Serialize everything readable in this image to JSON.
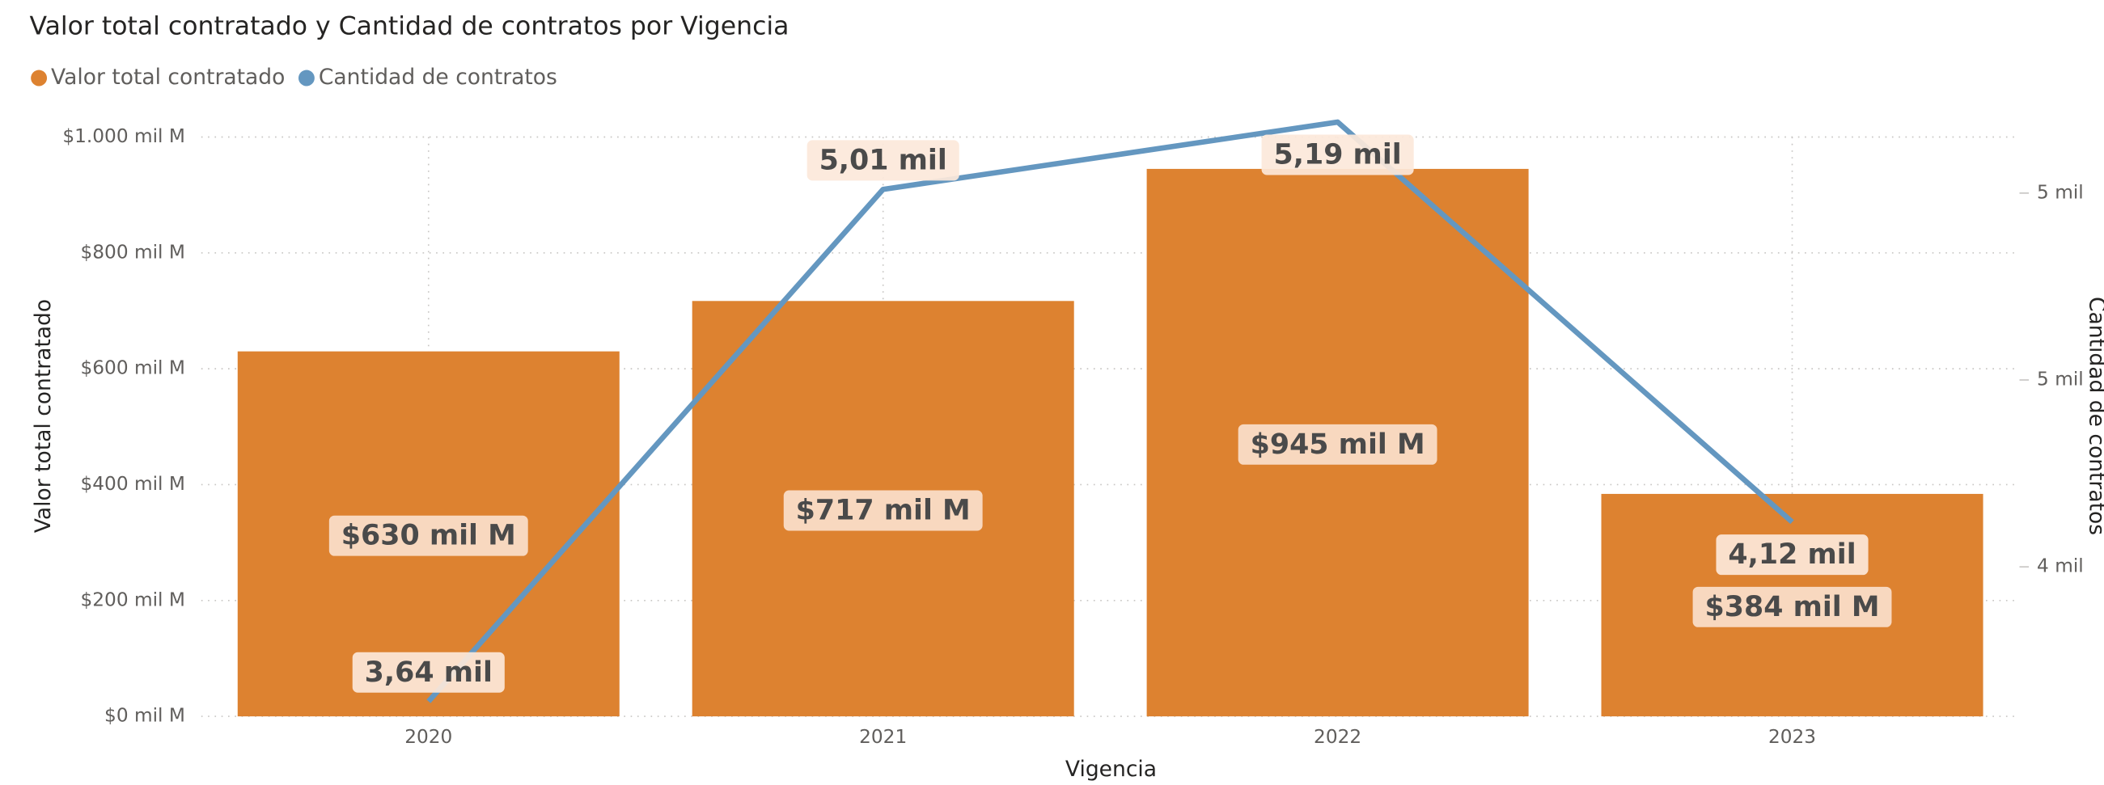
{
  "chart_data": {
    "type": "bar_line",
    "title": "Valor total contratado y Cantidad de contratos por Vigencia",
    "x_label": "Vigencia",
    "y_label": "Valor total contratado",
    "y2_label": "Cantidad de contratos",
    "categories": [
      "2020",
      "2021",
      "2022",
      "2023"
    ],
    "series": [
      {
        "name": "Valor total contratado",
        "type": "bar",
        "color": "#dd8230",
        "values": [
          630,
          717,
          945,
          384
        ],
        "value_labels": [
          "$630 mil M",
          "$717 mil M",
          "$945 mil M",
          "$384 mil M"
        ]
      },
      {
        "name": "Cantidad de contratos",
        "type": "line",
        "axis": "y2",
        "color": "#6497c0",
        "values": [
          3640,
          5010,
          5190,
          4120
        ],
        "value_labels": [
          "3,64 mil",
          "5,01 mil",
          "5,19 mil",
          "4,12 mil"
        ]
      }
    ],
    "ylim": [
      0,
      1000
    ],
    "yticks": [
      {
        "value": 0,
        "label": "$0 mil M"
      },
      {
        "value": 200,
        "label": "$200 mil M"
      },
      {
        "value": 400,
        "label": "$400 mil M"
      },
      {
        "value": 600,
        "label": "$600 mil M"
      },
      {
        "value": 800,
        "label": "$800 mil M"
      },
      {
        "value": 1000,
        "label": "$1.000 mil M"
      }
    ],
    "y2lim": [
      3600,
      5150
    ],
    "y2ticks": [
      {
        "value": 4000,
        "label": "4 mil"
      },
      {
        "value": 4500,
        "label": "5 mil"
      },
      {
        "value": 5000,
        "label": "5 mil"
      }
    ],
    "grid": true,
    "legend": "top-left"
  }
}
